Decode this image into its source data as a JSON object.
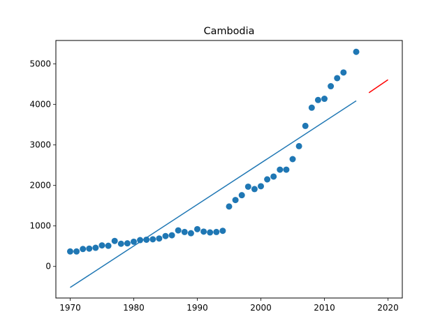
{
  "chart_data": {
    "type": "scatter",
    "title": "Cambodia",
    "xlabel": "",
    "ylabel": "",
    "xlim": [
      1967.75,
      2022.25
    ],
    "ylim": [
      -780,
      5580
    ],
    "xticks": [
      1970,
      1980,
      1990,
      2000,
      2010,
      2020
    ],
    "yticks": [
      0,
      1000,
      2000,
      3000,
      4000,
      5000
    ],
    "grid": false,
    "legend": "none",
    "scatter": {
      "color": "#1f77b4",
      "x": [
        1970,
        1971,
        1972,
        1973,
        1974,
        1975,
        1976,
        1977,
        1978,
        1979,
        1980,
        1981,
        1982,
        1983,
        1984,
        1985,
        1986,
        1987,
        1988,
        1989,
        1990,
        1991,
        1992,
        1993,
        1994,
        1995,
        1996,
        1997,
        1998,
        1999,
        2000,
        2001,
        2002,
        2003,
        2004,
        2005,
        2006,
        2007,
        2008,
        2009,
        2010,
        2011,
        2012,
        2013,
        2015
      ],
      "y": [
        370,
        370,
        430,
        440,
        460,
        520,
        510,
        630,
        560,
        570,
        610,
        650,
        660,
        670,
        690,
        750,
        770,
        890,
        850,
        820,
        920,
        860,
        840,
        850,
        880,
        1480,
        1640,
        1760,
        1970,
        1910,
        1980,
        2150,
        2220,
        2390,
        2390,
        2650,
        2970,
        3470,
        3920,
        4110,
        4140,
        4450,
        4650,
        4790,
        5300
      ]
    },
    "fit_line": {
      "color": "#1f77b4",
      "x": [
        1970,
        2015
      ],
      "y": [
        -520,
        4090
      ]
    },
    "forecast_line": {
      "color": "#ff0000",
      "x": [
        2017,
        2020
      ],
      "y": [
        4290,
        4610
      ]
    }
  }
}
